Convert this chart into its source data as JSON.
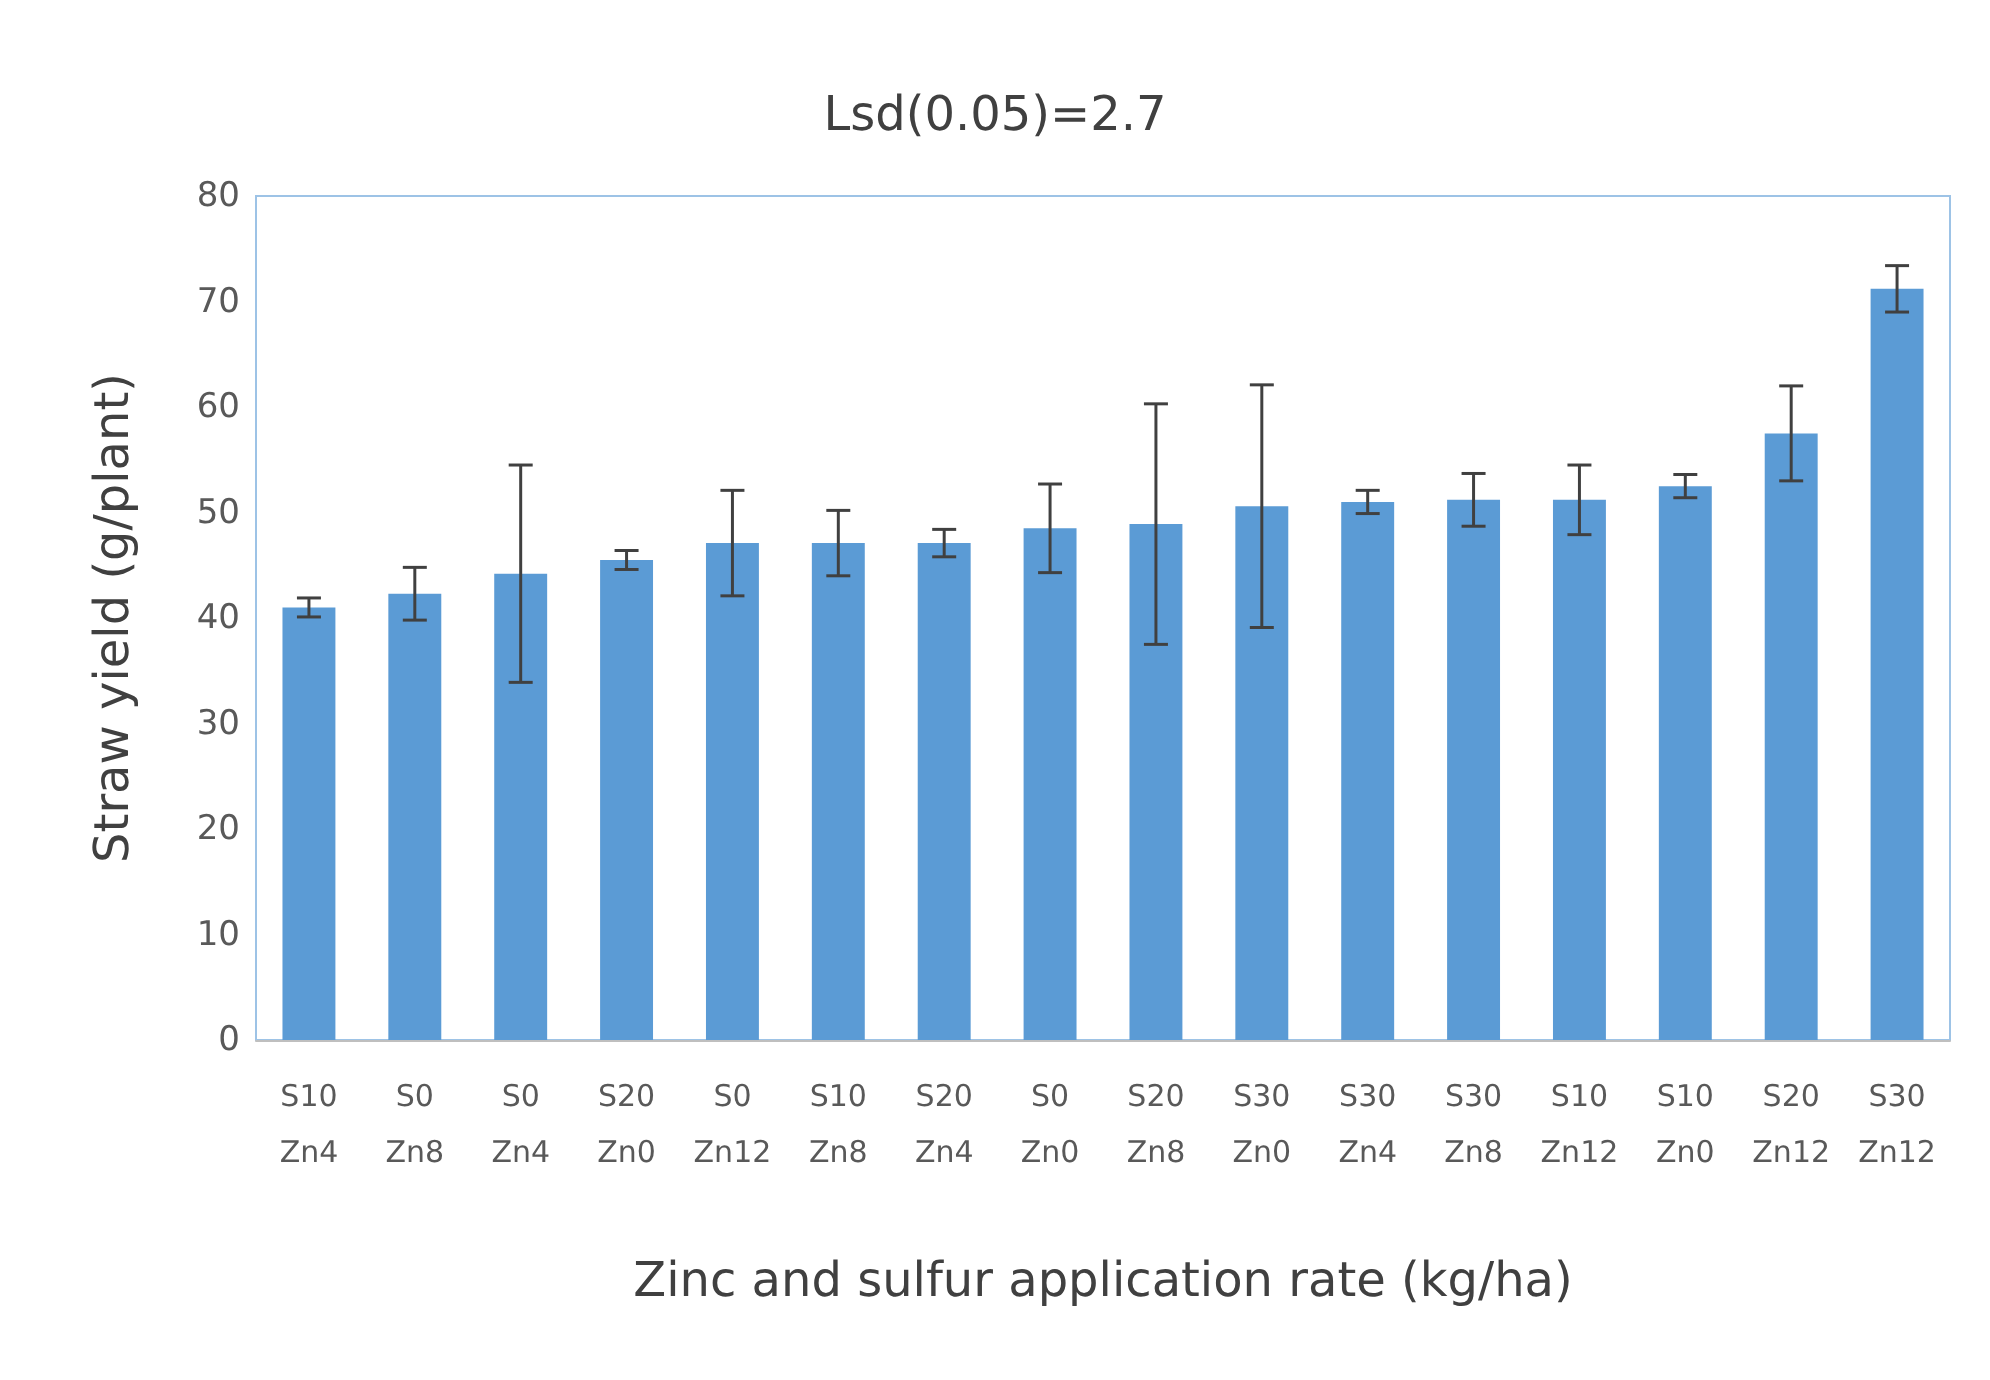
{
  "chart_data": {
    "type": "bar",
    "title": "Lsd(0.05)=2.7",
    "xlabel": "Zinc and sulfur application rate (kg/ha)",
    "ylabel": "Straw yield (g/plant)",
    "categories": [
      "S10\nZn4",
      "S0\nZn8",
      "S0\nZn4",
      "S20\nZn0",
      "S0\nZn12",
      "S10\nZn8",
      "S20\nZn4",
      "S0\nZn0",
      "S20\nZn8",
      "S30\nZn0",
      "S30\nZn4",
      "S30\nZn8",
      "S10\nZn12",
      "S10\nZn0",
      "S20\nZn12",
      "S30\nZn12"
    ],
    "values": [
      41,
      42.3,
      44.2,
      45.5,
      47.1,
      47.1,
      47.1,
      48.5,
      48.9,
      50.6,
      51,
      51.2,
      51.2,
      52.5,
      57.5,
      71.2
    ],
    "errors": [
      0.9,
      2.5,
      10.3,
      0.9,
      5,
      3.1,
      1.3,
      4.2,
      11.4,
      11.5,
      1.1,
      2.5,
      3.3,
      1.1,
      4.5,
      2.2
    ],
    "color": "#5b9bd5",
    "ylim": [
      0,
      80
    ],
    "yticks": [
      0,
      10,
      20,
      30,
      40,
      50,
      60,
      70,
      80
    ],
    "grid": false
  }
}
